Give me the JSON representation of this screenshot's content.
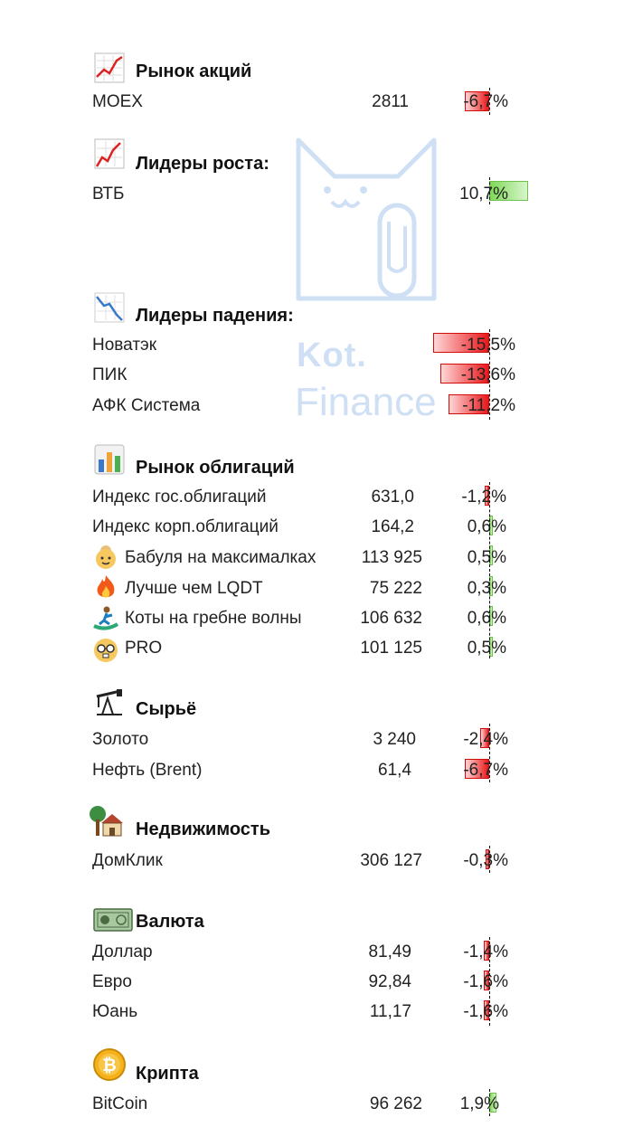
{
  "watermark": {
    "line1": "Kot.",
    "line2": "Finance"
  },
  "sections": {
    "stocks": {
      "title": "Рынок акций",
      "icon": "line-chart-icon"
    },
    "gainers": {
      "title": "Лидеры роста:",
      "icon": "chart-up-icon"
    },
    "losers": {
      "title": "Лидеры падения:",
      "icon": "chart-down-icon"
    },
    "bonds": {
      "title": "Рынок облигаций",
      "icon": "bar-chart-icon"
    },
    "commodities": {
      "title": "Сырьё",
      "icon": "oil-pump-icon"
    },
    "realty": {
      "title": "Недвижимость",
      "icon": "house-icon"
    },
    "currency": {
      "title": "Валюта",
      "icon": "banknote-icon"
    },
    "crypto": {
      "title": "Крипта",
      "icon": "bitcoin-icon"
    }
  },
  "rows": {
    "moex": {
      "name": "MOEX",
      "value": "2811",
      "pct": "-6,7%",
      "pct_num": -6.7
    },
    "vtb": {
      "name": "ВТБ",
      "value": "",
      "pct": "10,7%",
      "pct_num": 10.7
    },
    "novatek": {
      "name": "Новатэк",
      "pct": "-15,5%",
      "pct_num": -15.5
    },
    "pik": {
      "name": "ПИК",
      "pct": "-13,6%",
      "pct_num": -13.6
    },
    "afk": {
      "name": "АФК Система",
      "pct": "-11,2%",
      "pct_num": -11.2
    },
    "gov": {
      "name": "Индекс гос.облигаций",
      "value": "631,0",
      "pct": "-1,2%",
      "pct_num": -1.2
    },
    "corp": {
      "name": "Индекс корп.облигаций",
      "value": "164,2",
      "pct": "0,6%",
      "pct_num": 0.6
    },
    "babulya": {
      "name": "Бабуля на максималках",
      "value": "113 925",
      "pct": "0,5%",
      "pct_num": 0.5,
      "emoji": "grandma-icon"
    },
    "lqdt": {
      "name": "Лучше чем LQDT",
      "value": "75 222",
      "pct": "0,3%",
      "pct_num": 0.3,
      "emoji": "fire-icon"
    },
    "koty": {
      "name": "Коты на гребне волны",
      "value": "106 632",
      "pct": "0,6%",
      "pct_num": 0.6,
      "emoji": "surfer-icon"
    },
    "pro": {
      "name": "PRO",
      "value": "101 125",
      "pct": "0,5%",
      "pct_num": 0.5,
      "emoji": "nerd-face-icon"
    },
    "gold": {
      "name": "Золото",
      "value": "3 240",
      "pct": "-2,4%",
      "pct_num": -2.4
    },
    "brent": {
      "name": "Нефть (Brent)",
      "value": "61,4",
      "pct": "-6,7%",
      "pct_num": -6.7
    },
    "domklik": {
      "name": "ДомКлик",
      "value": "306 127",
      "pct": "-0,3%",
      "pct_num": -0.3
    },
    "usd": {
      "name": "Доллар",
      "value": "81,49",
      "pct": "-1,4%",
      "pct_num": -1.4
    },
    "eur": {
      "name": "Евро",
      "value": "92,84",
      "pct": "-1,6%",
      "pct_num": -1.6
    },
    "cny": {
      "name": "Юань",
      "value": "11,17",
      "pct": "-1,6%",
      "pct_num": -1.6
    },
    "btc": {
      "name": "BitCoin",
      "value": "96 262",
      "pct": "1,9%",
      "pct_num": 1.9
    }
  },
  "colors": {
    "negative": "#e8171a",
    "positive": "#7ed957",
    "watermark": "#cfe0f5"
  }
}
